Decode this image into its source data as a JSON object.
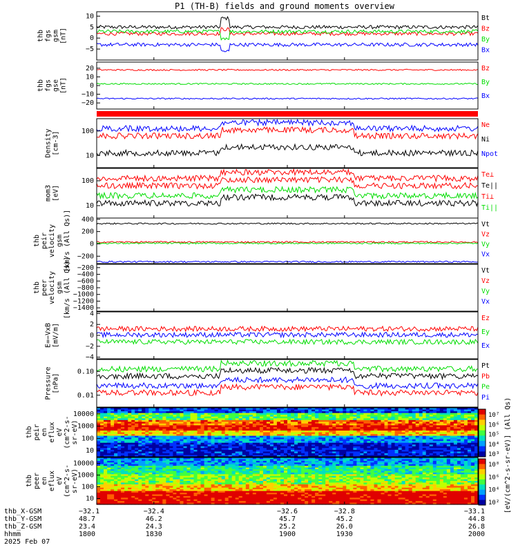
{
  "title": "P1 (TH-B) fields and ground moments overview",
  "colors": {
    "black": "#000000",
    "red": "#ff0000",
    "green": "#00dd00",
    "blue": "#0000ff"
  },
  "chart_data": [
    {
      "type": "line",
      "id": "fgs_gsm",
      "ylabel": [
        "thb",
        "fgs",
        "gsm",
        "[nT]"
      ],
      "ylim": [
        -10,
        12
      ],
      "yticks": [
        10,
        5,
        0,
        -5
      ],
      "series": [
        {
          "name": "Bt",
          "color": "black",
          "level": 5,
          "alt": 9
        },
        {
          "name": "Bz",
          "color": "red",
          "level": 2,
          "alt": 4
        },
        {
          "name": "By",
          "color": "green",
          "level": 3,
          "alt": 0
        },
        {
          "name": "Bx",
          "color": "blue",
          "level": -3,
          "alt": -6
        }
      ]
    },
    {
      "type": "line",
      "id": "fgs_gse",
      "ylabel": [
        "thb",
        "fgs",
        "gse",
        "[nT]"
      ],
      "ylim": [
        -27,
        27
      ],
      "yticks": [
        20,
        10,
        0,
        -10,
        -20
      ],
      "series": [
        {
          "name": "Bz",
          "color": "red",
          "level": 18,
          "alt": 22
        },
        {
          "name": "By",
          "color": "green",
          "level": 2,
          "alt": 1
        },
        {
          "name": "Bx",
          "color": "blue",
          "level": -15,
          "alt": -18
        }
      ]
    },
    {
      "type": "line",
      "id": "density",
      "ylabel": [
        "Density",
        "[cm-3]"
      ],
      "yticks": [
        "100",
        "10"
      ],
      "series": [
        {
          "name": "Ne",
          "color": "red"
        },
        {
          "name": "Ni",
          "color": "black"
        },
        {
          "name": "Npot",
          "color": "blue"
        }
      ]
    },
    {
      "type": "line",
      "id": "temp",
      "ylabel": [
        "mom3",
        "[eV]"
      ],
      "yticks": [
        "100",
        "10"
      ],
      "series": [
        {
          "name": "Te⊥",
          "color": "red"
        },
        {
          "name": "Te||",
          "color": "black"
        },
        {
          "name": "Ti⊥",
          "color": "red"
        },
        {
          "name": "Ti||",
          "color": "green"
        }
      ]
    },
    {
      "type": "line",
      "id": "peir_vel",
      "ylabel": [
        "thb",
        "peir",
        "velocity",
        "gsm",
        "[km/s (All Qs)]"
      ],
      "ylim": [
        -320,
        420
      ],
      "yticks": [
        "400",
        "200",
        "0",
        "−200"
      ],
      "series": [
        {
          "name": "Vt",
          "color": "black",
          "level": 330
        },
        {
          "name": "Vz",
          "color": "red",
          "level": 30
        },
        {
          "name": "Vy",
          "color": "green",
          "level": 10
        },
        {
          "name": "Vx",
          "color": "blue",
          "level": -290
        }
      ]
    },
    {
      "type": "line",
      "id": "peer_vel",
      "ylabel": [
        "thb",
        "peer",
        "velocity",
        "gsm",
        "[km/s (All Qs)]"
      ],
      "yticks": [
        "−200",
        "−400",
        "−600",
        "−800",
        "−1000",
        "−1200",
        "−1400"
      ],
      "series": [
        {
          "name": "Vt",
          "color": "black"
        },
        {
          "name": "Vz",
          "color": "red"
        },
        {
          "name": "Vy",
          "color": "green"
        },
        {
          "name": "Vx",
          "color": "blue"
        }
      ]
    },
    {
      "type": "line",
      "id": "efield",
      "ylabel": [
        "E=−VxB",
        "[mV/m]"
      ],
      "ylim": [
        -4.3,
        4.3
      ],
      "yticks": [
        "4",
        "2",
        "0",
        "−2",
        "−4"
      ],
      "series": [
        {
          "name": "Ez",
          "color": "red",
          "level": 1.2
        },
        {
          "name": "Ey",
          "color": "green",
          "level": -1.2
        },
        {
          "name": "Ex",
          "color": "blue",
          "level": 0.1
        }
      ]
    },
    {
      "type": "line",
      "id": "pressure",
      "ylabel": [
        "Pressure",
        "[nPa]"
      ],
      "yticks": [
        "0.10",
        "0.01"
      ],
      "series": [
        {
          "name": "Pt",
          "color": "black"
        },
        {
          "name": "Pb",
          "color": "red"
        },
        {
          "name": "Pe",
          "color": "green"
        },
        {
          "name": "Pi",
          "color": "blue"
        }
      ]
    },
    {
      "type": "heatmap",
      "id": "peir_spec",
      "ylabel": [
        "thb",
        "peir",
        "en",
        "eflux",
        "eV",
        "(cm^2-s-",
        "sr-eV)"
      ],
      "yticks": [
        "10000",
        "1000",
        "100",
        "10"
      ]
    },
    {
      "type": "heatmap",
      "id": "peer_spec",
      "ylabel": [
        "thb",
        "peer",
        "en",
        "eflux",
        "eV",
        "(cm^2-s-",
        "sr-eV)"
      ],
      "yticks": [
        "10000",
        "1000",
        "100",
        "10"
      ]
    }
  ],
  "colorbars": [
    {
      "label": "[eV/(cm^2-s-sr-eV)] (All Qs)",
      "ticks": [
        "10⁷",
        "10⁶",
        "10⁵",
        "10⁴",
        "10³"
      ]
    },
    {
      "label": "[eV/(cm^2-s-sr-eV)]",
      "ticks": [
        "10⁸",
        "10⁶",
        "10⁴",
        "10²"
      ]
    }
  ],
  "colorbar_label": "[eV/(cm^2-s-sr-eV)] (All Qs)",
  "x_axis": {
    "row_labels": [
      "thb_X-GSM",
      "thb_Y-GSM",
      "thb_Z-GSM",
      "hhmm",
      "2025 Feb 07"
    ],
    "columns": [
      {
        "x": "−32.1",
        "y": "48.7",
        "z": "23.4",
        "hhmm": "1800"
      },
      {
        "x": "−32.4",
        "y": "46.2",
        "z": "24.3",
        "hhmm": "1830"
      },
      {
        "x": "−32.6",
        "y": "45.7",
        "z": "25.2",
        "hhmm": "1900"
      },
      {
        "x": "−32.8",
        "y": "45.2",
        "z": "26.0",
        "hhmm": "1930"
      },
      {
        "x": "−33.1",
        "y": "44.8",
        "z": "26.8",
        "hhmm": "2000"
      }
    ]
  }
}
